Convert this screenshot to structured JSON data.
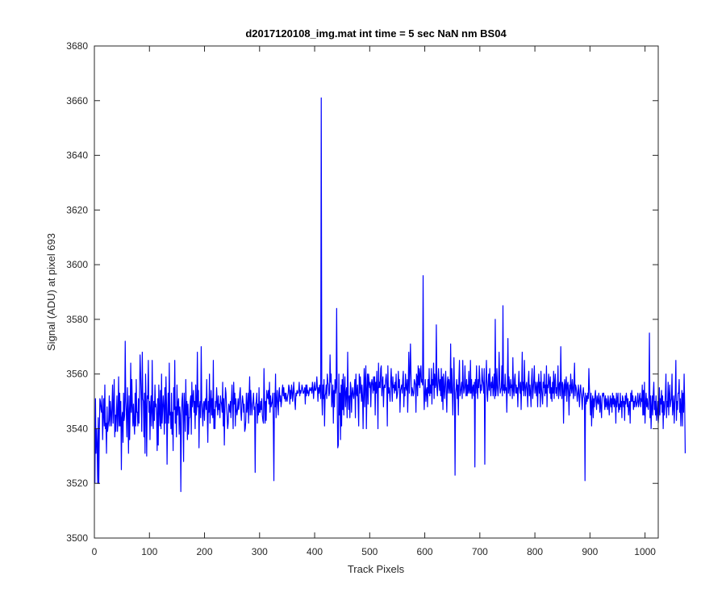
{
  "chart_data": {
    "type": "line",
    "title": "d2017120108_img.mat int time = 5 sec  NaN nm BS04",
    "xlabel": "Track Pixels",
    "ylabel": "Signal (ADU) at pixel 693",
    "xlim": [
      0,
      1024
    ],
    "ylim": [
      3500,
      3680
    ],
    "xticks": [
      0,
      100,
      200,
      300,
      400,
      500,
      600,
      700,
      800,
      900,
      1000
    ],
    "yticks": [
      3500,
      3520,
      3540,
      3560,
      3580,
      3600,
      3620,
      3640,
      3660,
      3680
    ],
    "grid": false,
    "legend": "none",
    "series": [
      {
        "color": "#0000ff",
        "x_start": 1,
        "x_step": 1,
        "y": [
          3520,
          3551,
          3531,
          3540,
          3534,
          3520,
          3544,
          3520,
          3539,
          3551,
          3550,
          3547,
          3546,
          3552,
          3536,
          3545,
          3551,
          3541,
          3556,
          3540,
          3542,
          3531,
          3548,
          3539,
          3541,
          3543,
          3552,
          3541,
          3550,
          3546,
          3541,
          3548,
          3556,
          3542,
          3548,
          3558,
          3537,
          3545,
          3539,
          3546,
          3552,
          3539,
          3545,
          3559,
          3541,
          3553,
          3541,
          3550,
          3525,
          3544,
          3546,
          3535,
          3553,
          3543,
          3545,
          3572,
          3550,
          3546,
          3537,
          3555,
          3546,
          3531,
          3552,
          3536,
          3547,
          3564,
          3546,
          3558,
          3548,
          3541,
          3549,
          3542,
          3538,
          3553,
          3541,
          3558,
          3546,
          3546,
          3541,
          3551,
          3542,
          3553,
          3567,
          3560,
          3551,
          3539,
          3568,
          3551,
          3550,
          3537,
          3553,
          3531,
          3560,
          3548,
          3530,
          3552,
          3551,
          3565,
          3546,
          3550,
          3536,
          3548,
          3552,
          3541,
          3565,
          3546,
          3540,
          3550,
          3543,
          3556,
          3548,
          3549,
          3545,
          3532,
          3551,
          3534,
          3556,
          3547,
          3541,
          3554,
          3540,
          3560,
          3542,
          3547,
          3552,
          3548,
          3538,
          3555,
          3542,
          3559,
          3549,
          3527,
          3545,
          3553,
          3542,
          3564,
          3545,
          3546,
          3540,
          3553,
          3538,
          3546,
          3532,
          3555,
          3547,
          3565,
          3542,
          3548,
          3537,
          3556,
          3545,
          3549,
          3551,
          3538,
          3548,
          3545,
          3517,
          3542,
          3550,
          3553,
          3546,
          3528,
          3553,
          3547,
          3539,
          3558,
          3545,
          3550,
          3536,
          3549,
          3538,
          3544,
          3544,
          3550,
          3552,
          3538,
          3557,
          3548,
          3551,
          3554,
          3546,
          3550,
          3540,
          3556,
          3545,
          3548,
          3568,
          3548,
          3554,
          3533,
          3548,
          3550,
          3544,
          3570,
          3550,
          3546,
          3541,
          3549,
          3550,
          3543,
          3550,
          3551,
          3547,
          3558,
          3545,
          3535,
          3550,
          3546,
          3560,
          3542,
          3549,
          3554,
          3545,
          3551,
          3544,
          3565,
          3540,
          3547,
          3540,
          3550,
          3548,
          3555,
          3550,
          3545,
          3552,
          3547,
          3549,
          3544,
          3552,
          3550,
          3549,
          3546,
          3557,
          3541,
          3551,
          3534,
          3547,
          3555,
          3553,
          3548,
          3545,
          3540,
          3542,
          3549,
          3548,
          3546,
          3550,
          3544,
          3551,
          3556,
          3548,
          3540,
          3557,
          3549,
          3553,
          3541,
          3551,
          3547,
          3545,
          3547,
          3551,
          3547,
          3549,
          3553,
          3555,
          3546,
          3543,
          3549,
          3552,
          3550,
          3546,
          3549,
          3539,
          3540,
          3543,
          3553,
          3546,
          3548,
          3553,
          3542,
          3552,
          3559,
          3545,
          3554,
          3550,
          3545,
          3548,
          3550,
          3553,
          3547,
          3548,
          3524,
          3549,
          3550,
          3553,
          3542,
          3549,
          3545,
          3555,
          3546,
          3546,
          3550,
          3547,
          3551,
          3545,
          3543,
          3542,
          3562,
          3551,
          3542,
          3550,
          3543,
          3554,
          3552,
          3551,
          3554,
          3549,
          3557,
          3546,
          3552,
          3548,
          3549,
          3550,
          3553,
          3541,
          3521,
          3553,
          3548,
          3560,
          3544,
          3550,
          3554,
          3549,
          3545,
          3553,
          3555,
          3550,
          3552,
          3548,
          3550,
          3554,
          3556,
          3552,
          3555,
          3551,
          3553,
          3550,
          3553,
          3551,
          3550,
          3552,
          3553,
          3556,
          3555,
          3549,
          3554,
          3551,
          3556,
          3554,
          3550,
          3553,
          3557,
          3553,
          3550,
          3547,
          3553,
          3552,
          3554,
          3553,
          3553,
          3554,
          3557,
          3552,
          3554,
          3553,
          3554,
          3556,
          3555,
          3553,
          3553,
          3554,
          3555,
          3549,
          3556,
          3552,
          3556,
          3553,
          3554,
          3552,
          3553,
          3555,
          3554,
          3554,
          3555,
          3553,
          3557,
          3555,
          3551,
          3554,
          3557,
          3554,
          3554,
          3555,
          3559,
          3555,
          3550,
          3555,
          3553,
          3556,
          3554,
          3551,
          3661,
          3553,
          3545,
          3556,
          3551,
          3558,
          3541,
          3552,
          3553,
          3556,
          3551,
          3560,
          3557,
          3556,
          3552,
          3553,
          3567,
          3557,
          3560,
          3548,
          3551,
          3556,
          3542,
          3554,
          3548,
          3558,
          3553,
          3555,
          3584,
          3550,
          3533,
          3534,
          3560,
          3545,
          3553,
          3536,
          3556,
          3541,
          3558,
          3547,
          3560,
          3545,
          3554,
          3559,
          3548,
          3553,
          3555,
          3544,
          3568,
          3552,
          3547,
          3552,
          3544,
          3557,
          3555,
          3546,
          3553,
          3555,
          3552,
          3551,
          3554,
          3558,
          3544,
          3560,
          3553,
          3552,
          3556,
          3549,
          3541,
          3560,
          3553,
          3559,
          3555,
          3550,
          3556,
          3552,
          3540,
          3554,
          3562,
          3548,
          3558,
          3563,
          3540,
          3554,
          3560,
          3549,
          3560,
          3557,
          3555,
          3557,
          3548,
          3556,
          3558,
          3556,
          3553,
          3559,
          3554,
          3559,
          3545,
          3557,
          3553,
          3561,
          3554,
          3540,
          3564,
          3555,
          3557,
          3555,
          3562,
          3563,
          3552,
          3557,
          3559,
          3548,
          3555,
          3556,
          3555,
          3558,
          3560,
          3556,
          3541,
          3563,
          3553,
          3555,
          3553,
          3550,
          3557,
          3562,
          3556,
          3550,
          3559,
          3555,
          3556,
          3553,
          3557,
          3554,
          3560,
          3551,
          3552,
          3554,
          3561,
          3555,
          3558,
          3546,
          3554,
          3555,
          3556,
          3553,
          3558,
          3561,
          3548,
          3555,
          3552,
          3560,
          3555,
          3554,
          3558,
          3546,
          3556,
          3568,
          3553,
          3560,
          3571,
          3560,
          3552,
          3555,
          3554,
          3552,
          3553,
          3558,
          3557,
          3556,
          3546,
          3560,
          3559,
          3552,
          3563,
          3556,
          3562,
          3555,
          3560,
          3563,
          3557,
          3558,
          3556,
          3596,
          3555,
          3547,
          3553,
          3558,
          3550,
          3554,
          3555,
          3548,
          3558,
          3553,
          3562,
          3552,
          3556,
          3553,
          3562,
          3549,
          3558,
          3556,
          3564,
          3551,
          3560,
          3555,
          3556,
          3578,
          3555,
          3552,
          3557,
          3562,
          3557,
          3554,
          3558,
          3552,
          3562,
          3550,
          3559,
          3547,
          3560,
          3555,
          3551,
          3557,
          3561,
          3553,
          3546,
          3557,
          3559,
          3553,
          3558,
          3555,
          3553,
          3571,
          3553,
          3562,
          3554,
          3545,
          3556,
          3566,
          3553,
          3523,
          3553,
          3555,
          3558,
          3551,
          3556,
          3545,
          3558,
          3565,
          3552,
          3553,
          3555,
          3557,
          3551,
          3565,
          3556,
          3553,
          3555,
          3563,
          3555,
          3552,
          3558,
          3552,
          3556,
          3553,
          3561,
          3554,
          3553,
          3565,
          3553,
          3558,
          3551,
          3555,
          3556,
          3552,
          3557,
          3526,
          3558,
          3553,
          3563,
          3555,
          3551,
          3558,
          3555,
          3563,
          3558,
          3553,
          3556,
          3554,
          3562,
          3558,
          3556,
          3553,
          3562,
          3527,
          3555,
          3558,
          3565,
          3553,
          3550,
          3556,
          3560,
          3554,
          3562,
          3556,
          3552,
          3557,
          3555,
          3559,
          3552,
          3555,
          3560,
          3551,
          3580,
          3552,
          3555,
          3562,
          3555,
          3552,
          3556,
          3568,
          3558,
          3553,
          3554,
          3555,
          3563,
          3552,
          3585,
          3554,
          3556,
          3553,
          3560,
          3554,
          3555,
          3546,
          3556,
          3573,
          3553,
          3559,
          3555,
          3552,
          3558,
          3555,
          3556,
          3551,
          3566,
          3554,
          3552,
          3558,
          3560,
          3553,
          3556,
          3553,
          3555,
          3548,
          3556,
          3561,
          3555,
          3553,
          3557,
          3547,
          3556,
          3568,
          3554,
          3557,
          3552,
          3565,
          3555,
          3552,
          3556,
          3557,
          3554,
          3548,
          3558,
          3561,
          3552,
          3556,
          3553,
          3548,
          3558,
          3562,
          3551,
          3554,
          3558,
          3563,
          3553,
          3557,
          3555,
          3552,
          3557,
          3548,
          3556,
          3560,
          3553,
          3557,
          3548,
          3561,
          3555,
          3552,
          3549,
          3557,
          3555,
          3560,
          3552,
          3556,
          3553,
          3563,
          3548,
          3556,
          3555,
          3560,
          3557,
          3553,
          3559,
          3551,
          3555,
          3550,
          3557,
          3553,
          3561,
          3551,
          3557,
          3560,
          3553,
          3555,
          3552,
          3556,
          3563,
          3551,
          3556,
          3557,
          3552,
          3570,
          3556,
          3551,
          3557,
          3556,
          3542,
          3554,
          3558,
          3552,
          3556,
          3559,
          3550,
          3556,
          3557,
          3553,
          3545,
          3556,
          3552,
          3560,
          3555,
          3553,
          3558,
          3555,
          3551,
          3557,
          3564,
          3552,
          3556,
          3555,
          3553,
          3550,
          3553,
          3556,
          3552,
          3548,
          3554,
          3556,
          3553,
          3551,
          3547,
          3553,
          3555,
          3552,
          3551,
          3521,
          3553,
          3549,
          3552,
          3550,
          3553,
          3551,
          3562,
          3555,
          3551,
          3545,
          3553,
          3541,
          3550,
          3552,
          3544,
          3551,
          3548,
          3552,
          3554,
          3550,
          3547,
          3552,
          3550,
          3549,
          3553,
          3550,
          3546,
          3552,
          3548,
          3544,
          3551,
          3553,
          3552,
          3553,
          3550,
          3547,
          3552,
          3548,
          3551,
          3549,
          3547,
          3552,
          3549,
          3545,
          3550,
          3552,
          3548,
          3551,
          3546,
          3553,
          3549,
          3552,
          3548,
          3551,
          3550,
          3542,
          3553,
          3548,
          3551,
          3553,
          3546,
          3549,
          3547,
          3553,
          3548,
          3550,
          3544,
          3552,
          3551,
          3548,
          3550,
          3543,
          3552,
          3549,
          3553,
          3551,
          3548,
          3551,
          3545,
          3548,
          3550,
          3542,
          3553,
          3550,
          3554,
          3550,
          3552,
          3547,
          3550,
          3548,
          3551,
          3552,
          3548,
          3549,
          3550,
          3553,
          3548,
          3549,
          3552,
          3553,
          3548,
          3551,
          3550,
          3556,
          3545,
          3554,
          3545,
          3557,
          3542,
          3549,
          3553,
          3548,
          3551,
          3548,
          3547,
          3552,
          3575,
          3544,
          3552,
          3540,
          3548,
          3552,
          3545,
          3553,
          3557,
          3547,
          3550,
          3545,
          3552,
          3543,
          3546,
          3550,
          3542,
          3545,
          3555,
          3545,
          3551,
          3549,
          3554,
          3546,
          3552,
          3540,
          3550,
          3545,
          3548,
          3553,
          3560,
          3544,
          3550,
          3548,
          3557,
          3545,
          3552,
          3556,
          3548,
          3550,
          3551,
          3560,
          3545,
          3548,
          3552,
          3542,
          3549,
          3553,
          3565,
          3543,
          3550,
          3547,
          3553,
          3553,
          3558,
          3546,
          3551,
          3541,
          3549,
          3554,
          3541,
          3553,
          3546,
          3560,
          3549,
          3531
        ]
      }
    ]
  }
}
